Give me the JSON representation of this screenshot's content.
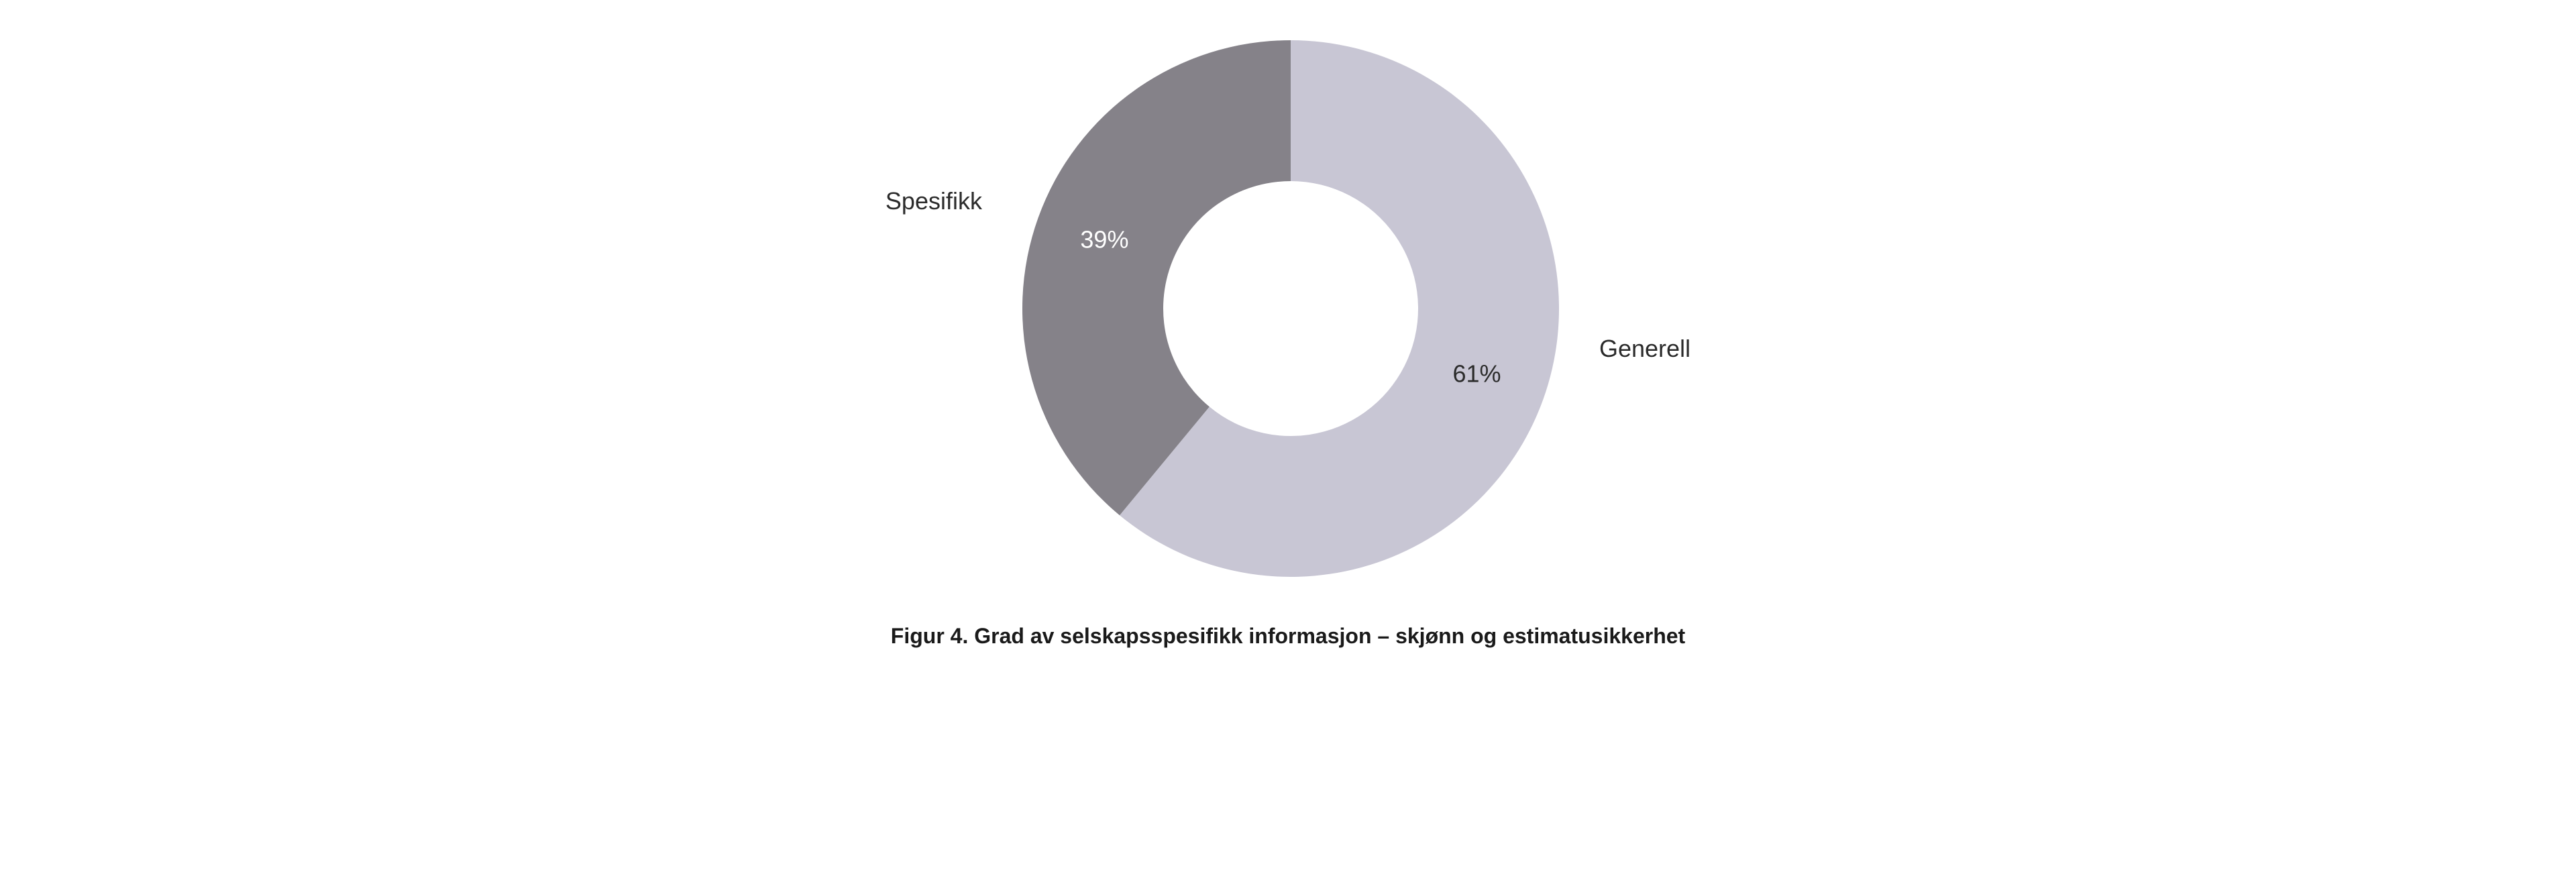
{
  "chart": {
    "type": "donut",
    "background_color": "#ffffff",
    "outer_radius": 400,
    "inner_radius": 190,
    "start_angle_deg": -90,
    "slices": [
      {
        "key": "generell",
        "value": 61,
        "color": "#c8c6d4",
        "percent_text": "61%",
        "label": "Generell",
        "label_side": "right"
      },
      {
        "key": "spesifikk",
        "value": 39,
        "color": "#858289",
        "percent_text": "39%",
        "label": "Spesifikk",
        "label_side": "left"
      }
    ],
    "label_color": "#2b2b2b",
    "label_fontsize": 36,
    "percent_color_on_dark": "#ffffff",
    "percent_color_on_light": "#2b2b2b",
    "percent_fontsize": 36,
    "svg_size": 840
  },
  "caption": {
    "text": "Figur 4. Grad av selskapsspesifikk informasjon – skjønn og estimatusikkerhet",
    "fontsize": 32,
    "color": "#1a1a1a",
    "font_weight": 700
  }
}
